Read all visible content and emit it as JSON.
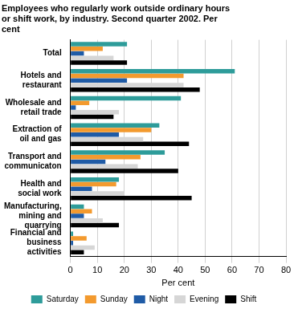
{
  "chart_data": {
    "type": "bar",
    "orientation": "horizontal",
    "title": "Employees who regularly work outside ordinary hours or shift work, by industry. Second quarter 2002. Per cent",
    "x_label": "Per cent",
    "categories": [
      "Total",
      "Hotels and restaurant",
      "Wholesale and retail trade",
      "Extraction of oil and gas",
      "Transport and communicaton",
      "Health and social work",
      "Manufacturing, mining and quarrying",
      "Financial and business activities"
    ],
    "series": [
      {
        "name": "Saturday",
        "color": "#2e9c9a",
        "values": [
          21,
          61,
          41,
          33,
          35,
          18,
          5,
          1
        ]
      },
      {
        "name": "Sunday",
        "color": "#f39a2e",
        "values": [
          12,
          42,
          7,
          30,
          26,
          17,
          8,
          6
        ]
      },
      {
        "name": "Night",
        "color": "#1f5ba6",
        "values": [
          5,
          21,
          2,
          18,
          13,
          8,
          5,
          1
        ]
      },
      {
        "name": "Evening",
        "color": "#d6d6d6",
        "values": [
          16,
          42,
          18,
          27,
          25,
          20,
          12,
          9
        ]
      },
      {
        "name": "Shift",
        "color": "#000000",
        "values": [
          21,
          48,
          16,
          44,
          40,
          45,
          18,
          5
        ]
      }
    ],
    "xlim": [
      0,
      80
    ],
    "xticks": [
      0,
      10,
      20,
      30,
      40,
      50,
      60,
      70,
      80
    ],
    "grid": true,
    "legend": "bottom"
  }
}
